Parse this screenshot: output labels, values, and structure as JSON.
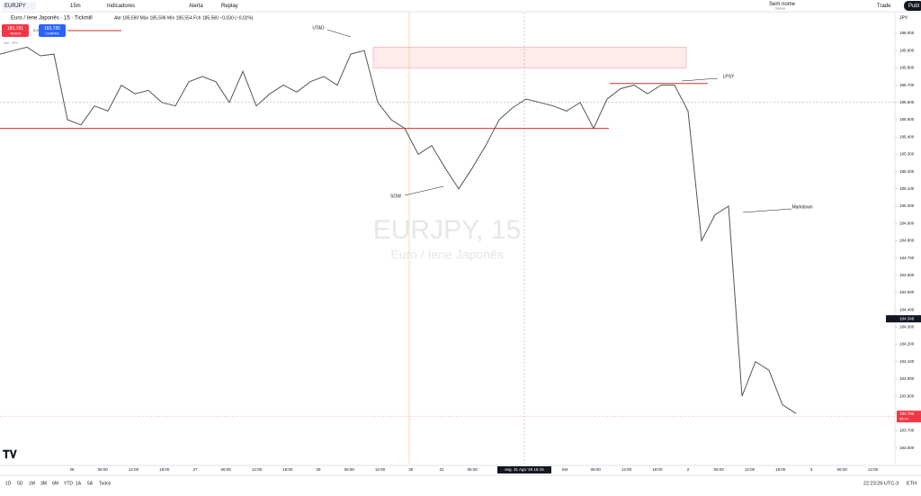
{
  "toolbar": {
    "symbol": "EURJPY",
    "interval": "15m",
    "indicators": "Indicadores",
    "alert": "Alerta",
    "replay": "Replay",
    "layout_name": "Sem nome",
    "save": "Salvar",
    "trade": "Trade",
    "publish": "Publ"
  },
  "legend": {
    "title": "Euro / Iene Japonês · 15 · Tickmill",
    "ohlc": "Abr 185,590  Máx 185,596  Mín 185,554  Fch 185,560  −0,030 (−0,02%)",
    "sell_price": "183,781",
    "sell": "VENDA",
    "spread": "0.4",
    "buy_price": "183,785",
    "buy": "COMPRA",
    "sub": "Vol · JPY"
  },
  "watermark": {
    "symbol": "EURJPY, 15",
    "name": "Euro / Iene Japonês"
  },
  "chart": {
    "type": "line",
    "currency": "JPY",
    "color": "#555555",
    "ylim": [
      183.51,
      186.12
    ],
    "yticks": [
      {
        "value": 183.6,
        "label": "183.600"
      },
      {
        "value": 183.7,
        "label": "183.700"
      },
      {
        "value": 183.8,
        "label": "183.800"
      },
      {
        "value": 183.9,
        "label": "183.900"
      },
      {
        "value": 184.0,
        "label": "184.000"
      },
      {
        "value": 184.1,
        "label": "184.100"
      },
      {
        "value": 184.2,
        "label": "184.200"
      },
      {
        "value": 184.3,
        "label": "184.300"
      },
      {
        "value": 184.4,
        "label": "184.400"
      },
      {
        "value": 184.5,
        "label": "184.500"
      },
      {
        "value": 184.6,
        "label": "184.600"
      },
      {
        "value": 184.7,
        "label": "184.700"
      },
      {
        "value": 184.8,
        "label": "184.800"
      },
      {
        "value": 184.9,
        "label": "184.900"
      },
      {
        "value": 185.0,
        "label": "185.000"
      },
      {
        "value": 185.1,
        "label": "185.100"
      },
      {
        "value": 185.2,
        "label": "185.200"
      },
      {
        "value": 185.3,
        "label": "185.300"
      },
      {
        "value": 185.4,
        "label": "185.400"
      },
      {
        "value": 185.5,
        "label": "185.500"
      },
      {
        "value": 185.6,
        "label": "185.600"
      },
      {
        "value": 185.7,
        "label": "185.700"
      },
      {
        "value": 185.8,
        "label": "185.800"
      },
      {
        "value": 185.9,
        "label": "185.900"
      },
      {
        "value": 186.0,
        "label": "186.000"
      }
    ],
    "categories": [
      "26",
      "06:00",
      "12:00",
      "18:00",
      "27",
      "06:00",
      "12:00",
      "18:00",
      "28",
      "06:00",
      "12:00",
      "30",
      "31",
      "06:00",
      null,
      null,
      "Set",
      "06:00",
      "12:00",
      "18:00",
      "2",
      "06:00",
      "12:00",
      "18:00",
      "3",
      "06:00",
      "12:00"
    ],
    "crosshair_time": "seg. 31 Ago '26  16:15",
    "values": [
      185.88,
      185.9,
      185.92,
      185.87,
      185.88,
      185.5,
      185.47,
      185.58,
      185.55,
      185.7,
      185.65,
      185.67,
      185.6,
      185.58,
      185.72,
      185.75,
      185.72,
      185.6,
      185.78,
      185.58,
      185.65,
      185.7,
      185.66,
      185.72,
      185.75,
      185.7,
      185.88,
      185.9,
      185.6,
      185.5,
      185.45,
      185.3,
      185.35,
      185.22,
      185.1,
      185.22,
      185.35,
      185.5,
      185.57,
      185.62,
      185.6,
      185.58,
      185.55,
      185.6,
      185.45,
      185.62,
      185.68,
      185.7,
      185.65,
      185.7,
      185.7,
      185.55,
      184.8,
      184.95,
      185.0,
      183.9,
      184.1,
      184.05,
      183.85,
      183.8
    ],
    "support": 185.45,
    "lpsy_level": 185.71,
    "zone": [
      185.8,
      185.92
    ],
    "current_price": {
      "value": 184.348,
      "label": "184.348"
    },
    "last_price": {
      "value": 183.785,
      "label": "183.785",
      "countdown": "06:34"
    },
    "annotations": [
      "UTAD",
      "SOW",
      "LPSY",
      "Markdown"
    ]
  },
  "footer": {
    "ranges": [
      "1D",
      "5D",
      "1M",
      "3M",
      "6M",
      "YTD",
      "1A",
      "5A",
      "Todos"
    ],
    "clock": "22:23:26 UTC-3",
    "session": "ETH"
  }
}
